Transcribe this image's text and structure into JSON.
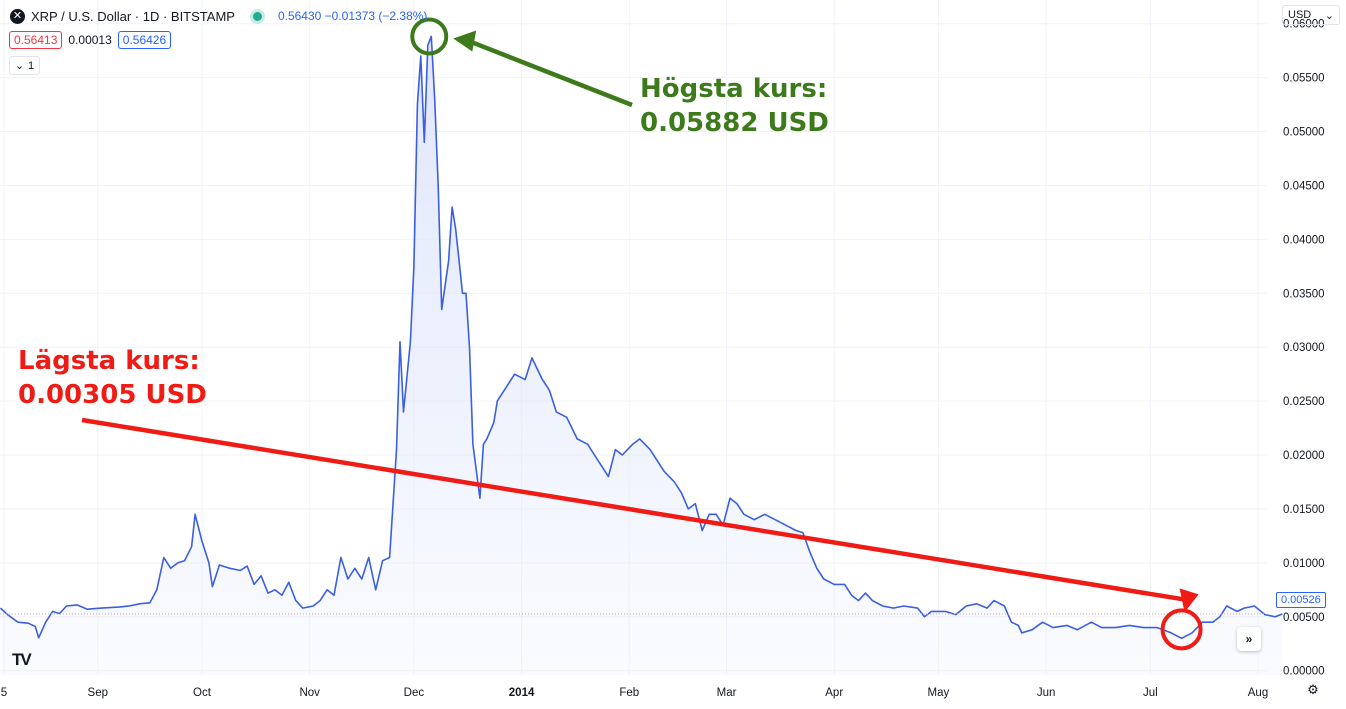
{
  "header": {
    "symbol_logo": "✕",
    "title": "XRP / U.S. Dollar · 1D · BITSTAMP",
    "quote": "0.56430  −0.01373 (−2.38%)"
  },
  "ohlc": {
    "bid": "0.56413",
    "spread": "0.00013",
    "ask": "0.56426"
  },
  "controls": {
    "collapse_icon": "chevron-down-icon",
    "collapse_count": "1",
    "currency": "USD",
    "currency_icon": "chevron-down-icon",
    "scroll_icon": "»",
    "settings_icon": "⚙",
    "logo": "TV"
  },
  "annotations": {
    "high": {
      "line1": "Högsta kurs:",
      "line2": "0.05882 USD",
      "color": "#3d7a1c"
    },
    "low": {
      "line1": "Lägsta kurs:",
      "line2": "0.00305 USD",
      "color": "#ef1b14"
    }
  },
  "chart_data": {
    "type": "area",
    "title": "",
    "xlabel": "",
    "ylabel": "",
    "y_ticks": [
      "0.06000",
      "0.05500",
      "0.05000",
      "0.04500",
      "0.04000",
      "0.03500",
      "0.03000",
      "0.02500",
      "0.02000",
      "0.01500",
      "0.01000",
      "0.00500",
      "0.00000"
    ],
    "x_ticks": [
      {
        "label": "5",
        "date": "2013-08-05"
      },
      {
        "label": "Sep",
        "date": "2013-09-01"
      },
      {
        "label": "Oct",
        "date": "2013-10-01"
      },
      {
        "label": "Nov",
        "date": "2013-11-01"
      },
      {
        "label": "Dec",
        "date": "2013-12-01"
      },
      {
        "label": "2014",
        "date": "2014-01-01"
      },
      {
        "label": "Feb",
        "date": "2014-02-01"
      },
      {
        "label": "Mar",
        "date": "2014-03-01"
      },
      {
        "label": "Apr",
        "date": "2014-04-01"
      },
      {
        "label": "May",
        "date": "2014-05-01"
      },
      {
        "label": "Jun",
        "date": "2014-06-01"
      },
      {
        "label": "Jul",
        "date": "2014-07-01"
      },
      {
        "label": "Aug",
        "date": "2014-08-01"
      }
    ],
    "ylim": [
      -0.0004,
      0.0622
    ],
    "last_price_label": "0.00526",
    "line_color": "#3b5fe0",
    "fill_color": "#dfe6fb",
    "series": [
      {
        "points": [
          [
            "2013-08-04",
            0.0058
          ],
          [
            "2013-08-06",
            0.0052
          ],
          [
            "2013-08-09",
            0.0045
          ],
          [
            "2013-08-12",
            0.0044
          ],
          [
            "2013-08-14",
            0.0041
          ],
          [
            "2013-08-15",
            0.00305
          ],
          [
            "2013-08-17",
            0.0045
          ],
          [
            "2013-08-19",
            0.0055
          ],
          [
            "2013-08-21",
            0.0053
          ],
          [
            "2013-08-23",
            0.006
          ],
          [
            "2013-08-26",
            0.0061
          ],
          [
            "2013-08-29",
            0.0057
          ],
          [
            "2013-09-02",
            0.0058
          ],
          [
            "2013-09-07",
            0.0059
          ],
          [
            "2013-09-10",
            0.006
          ],
          [
            "2013-09-13",
            0.0062
          ],
          [
            "2013-09-16",
            0.0063
          ],
          [
            "2013-09-18",
            0.0075
          ],
          [
            "2013-09-20",
            0.0105
          ],
          [
            "2013-09-22",
            0.0095
          ],
          [
            "2013-09-24",
            0.01
          ],
          [
            "2013-09-26",
            0.0102
          ],
          [
            "2013-09-28",
            0.0115
          ],
          [
            "2013-09-29",
            0.0145
          ],
          [
            "2013-10-01",
            0.012
          ],
          [
            "2013-10-03",
            0.01
          ],
          [
            "2013-10-04",
            0.0078
          ],
          [
            "2013-10-06",
            0.0098
          ],
          [
            "2013-10-09",
            0.0095
          ],
          [
            "2013-10-12",
            0.0093
          ],
          [
            "2013-10-14",
            0.0097
          ],
          [
            "2013-10-16",
            0.008
          ],
          [
            "2013-10-18",
            0.0088
          ],
          [
            "2013-10-20",
            0.0072
          ],
          [
            "2013-10-22",
            0.0075
          ],
          [
            "2013-10-24",
            0.007
          ],
          [
            "2013-10-26",
            0.0082
          ],
          [
            "2013-10-28",
            0.0065
          ],
          [
            "2013-10-30",
            0.0058
          ],
          [
            "2013-11-02",
            0.006
          ],
          [
            "2013-11-04",
            0.0065
          ],
          [
            "2013-11-06",
            0.0075
          ],
          [
            "2013-11-08",
            0.007
          ],
          [
            "2013-11-10",
            0.0105
          ],
          [
            "2013-11-12",
            0.0085
          ],
          [
            "2013-11-14",
            0.0095
          ],
          [
            "2013-11-16",
            0.0085
          ],
          [
            "2013-11-18",
            0.0105
          ],
          [
            "2013-11-20",
            0.0075
          ],
          [
            "2013-11-22",
            0.0102
          ],
          [
            "2013-11-24",
            0.0105
          ],
          [
            "2013-11-26",
            0.0205
          ],
          [
            "2013-11-27",
            0.0305
          ],
          [
            "2013-11-28",
            0.024
          ],
          [
            "2013-11-30",
            0.0305
          ],
          [
            "2013-12-01",
            0.0375
          ],
          [
            "2013-12-02",
            0.0525
          ],
          [
            "2013-12-03",
            0.057
          ],
          [
            "2013-12-04",
            0.049
          ],
          [
            "2013-12-05",
            0.058
          ],
          [
            "2013-12-06",
            0.05882
          ],
          [
            "2013-12-07",
            0.053
          ],
          [
            "2013-12-08",
            0.045
          ],
          [
            "2013-12-09",
            0.0335
          ],
          [
            "2013-12-11",
            0.038
          ],
          [
            "2013-12-12",
            0.043
          ],
          [
            "2013-12-13",
            0.041
          ],
          [
            "2013-12-14",
            0.038
          ],
          [
            "2013-12-15",
            0.035
          ],
          [
            "2013-12-16",
            0.035
          ],
          [
            "2013-12-17",
            0.03
          ],
          [
            "2013-12-18",
            0.021
          ],
          [
            "2013-12-20",
            0.016
          ],
          [
            "2013-12-21",
            0.021
          ],
          [
            "2013-12-22",
            0.0215
          ],
          [
            "2013-12-24",
            0.023
          ],
          [
            "2013-12-25",
            0.025
          ],
          [
            "2013-12-28",
            0.0265
          ],
          [
            "2013-12-30",
            0.0275
          ],
          [
            "2014-01-02",
            0.027
          ],
          [
            "2014-01-04",
            0.029
          ],
          [
            "2014-01-07",
            0.027
          ],
          [
            "2014-01-09",
            0.026
          ],
          [
            "2014-01-11",
            0.024
          ],
          [
            "2014-01-14",
            0.0235
          ],
          [
            "2014-01-17",
            0.0215
          ],
          [
            "2014-01-20",
            0.021
          ],
          [
            "2014-01-22",
            0.02
          ],
          [
            "2014-01-24",
            0.019
          ],
          [
            "2014-01-26",
            0.018
          ],
          [
            "2014-01-28",
            0.0205
          ],
          [
            "2014-01-30",
            0.02
          ],
          [
            "2014-02-02",
            0.021
          ],
          [
            "2014-02-04",
            0.0215
          ],
          [
            "2014-02-07",
            0.0205
          ],
          [
            "2014-02-09",
            0.0195
          ],
          [
            "2014-02-11",
            0.0185
          ],
          [
            "2014-02-14",
            0.0175
          ],
          [
            "2014-02-16",
            0.0165
          ],
          [
            "2014-02-18",
            0.015
          ],
          [
            "2014-02-20",
            0.0155
          ],
          [
            "2014-02-22",
            0.013
          ],
          [
            "2014-02-24",
            0.0145
          ],
          [
            "2014-02-26",
            0.0145
          ],
          [
            "2014-02-28",
            0.0135
          ],
          [
            "2014-03-02",
            0.016
          ],
          [
            "2014-03-04",
            0.0155
          ],
          [
            "2014-03-06",
            0.0145
          ],
          [
            "2014-03-09",
            0.014
          ],
          [
            "2014-03-12",
            0.0145
          ],
          [
            "2014-03-15",
            0.014
          ],
          [
            "2014-03-18",
            0.0135
          ],
          [
            "2014-03-21",
            0.013
          ],
          [
            "2014-03-23",
            0.0128
          ],
          [
            "2014-03-25",
            0.011
          ],
          [
            "2014-03-27",
            0.0095
          ],
          [
            "2014-03-29",
            0.0085
          ],
          [
            "2014-04-01",
            0.008
          ],
          [
            "2014-04-04",
            0.008
          ],
          [
            "2014-04-06",
            0.007
          ],
          [
            "2014-04-08",
            0.0065
          ],
          [
            "2014-04-10",
            0.0072
          ],
          [
            "2014-04-12",
            0.0065
          ],
          [
            "2014-04-15",
            0.006
          ],
          [
            "2014-04-18",
            0.0058
          ],
          [
            "2014-04-21",
            0.006
          ],
          [
            "2014-04-25",
            0.0058
          ],
          [
            "2014-04-27",
            0.005
          ],
          [
            "2014-04-29",
            0.0055
          ],
          [
            "2014-05-03",
            0.0055
          ],
          [
            "2014-05-06",
            0.0052
          ],
          [
            "2014-05-09",
            0.006
          ],
          [
            "2014-05-12",
            0.0062
          ],
          [
            "2014-05-15",
            0.0058
          ],
          [
            "2014-05-17",
            0.0065
          ],
          [
            "2014-05-20",
            0.006
          ],
          [
            "2014-05-22",
            0.0045
          ],
          [
            "2014-05-24",
            0.0042
          ],
          [
            "2014-05-25",
            0.0035
          ],
          [
            "2014-05-28",
            0.0038
          ],
          [
            "2014-05-31",
            0.0045
          ],
          [
            "2014-06-03",
            0.004
          ],
          [
            "2014-06-07",
            0.0042
          ],
          [
            "2014-06-10",
            0.0038
          ],
          [
            "2014-06-14",
            0.0045
          ],
          [
            "2014-06-17",
            0.004
          ],
          [
            "2014-06-21",
            0.004
          ],
          [
            "2014-06-25",
            0.0042
          ],
          [
            "2014-06-29",
            0.004
          ],
          [
            "2014-07-03",
            0.004
          ],
          [
            "2014-07-07",
            0.0035
          ],
          [
            "2014-07-10",
            0.003
          ],
          [
            "2014-07-13",
            0.0035
          ],
          [
            "2014-07-16",
            0.0045
          ],
          [
            "2014-07-19",
            0.0045
          ],
          [
            "2014-07-21",
            0.005
          ],
          [
            "2014-07-23",
            0.006
          ],
          [
            "2014-07-26",
            0.0055
          ],
          [
            "2014-07-28",
            0.0058
          ],
          [
            "2014-07-31",
            0.006
          ],
          [
            "2014-08-03",
            0.0052
          ],
          [
            "2014-08-06",
            0.005
          ],
          [
            "2014-08-08",
            0.00526
          ]
        ]
      }
    ]
  }
}
